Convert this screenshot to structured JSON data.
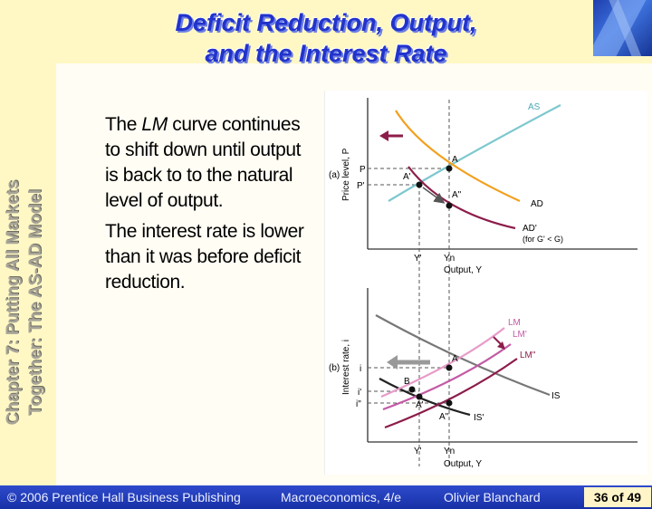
{
  "slide": {
    "title_line1": "Deficit Reduction, Output,",
    "title_line2": "and the Interest Rate",
    "side_title_line1": "Chapter 7: Putting All Markets",
    "side_title_line2": "Together: The AS-AD Model",
    "para1_pre": "The ",
    "para1_em": "LM",
    "para1_post": " curve continues to shift down until output is back to to the natural level of output.",
    "para2": "The interest rate is lower than it was before deficit reduction."
  },
  "figure": {
    "panel_a": {
      "panel_label": "(a)",
      "ylabel": "Price level, P",
      "xlabel": "Output, Y",
      "tick_Y_prime": "Y'",
      "tick_Yn": "Yn",
      "tick_P": "P",
      "tick_P_prime": "P'",
      "curve_AS": "AS",
      "curve_AD": "AD",
      "curve_AD_prime": "AD'",
      "curve_AD_prime_note": "(for G' < G)",
      "point_A": "A",
      "point_A_prime": "A'",
      "point_A_dprime": "A\""
    },
    "panel_b": {
      "panel_label": "(b)",
      "ylabel": "Interest rate, i",
      "xlabel": "Output, Y",
      "tick_Y_prime": "Y'",
      "tick_Yn": "Yn",
      "tick_i": "i",
      "tick_i_prime": "i'",
      "tick_i_dprime": "i\"",
      "curve_LM": "LM",
      "curve_LM_prime": "LM'",
      "curve_LM_dprime": "LM\"",
      "curve_IS": "IS",
      "curve_IS_prime": "IS'",
      "point_A": "A",
      "point_A_prime": "A'",
      "point_A_dprime": "A\"",
      "point_B": "B"
    },
    "colors": {
      "AS": "#7EC8CF",
      "AD": "#F2A01E",
      "AD_prime": "#8C1D4A",
      "IS": "#777777",
      "IS_prime": "#222222",
      "LM": "#E79BC9",
      "LM_prime": "#C25AA5",
      "LM_dprime": "#8C1D4A"
    }
  },
  "footer": {
    "publisher": "© 2006 Prentice Hall Business Publishing",
    "book": "Macroeconomics, 4/e",
    "author": "Olivier Blanchard",
    "page": "36 of 49"
  }
}
